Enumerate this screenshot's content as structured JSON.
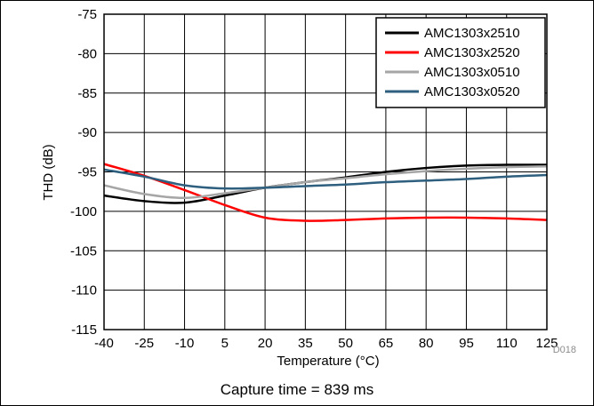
{
  "chart_data": {
    "type": "line",
    "xlabel": "Temperature (°C)",
    "ylabel": "THD (dB)",
    "xlim": [
      -40,
      125
    ],
    "ylim": [
      -115,
      -75
    ],
    "xticks": [
      -40,
      -25,
      -10,
      5,
      20,
      35,
      50,
      65,
      80,
      95,
      110,
      125
    ],
    "yticks": [
      -75,
      -80,
      -85,
      -90,
      -95,
      -100,
      -105,
      -110,
      -115
    ],
    "grid": true,
    "legend_position": "top-right",
    "figure_id": "D018",
    "series": [
      {
        "name": "AMC1303x2510",
        "color": "#000000",
        "x": [
          -40,
          -25,
          -10,
          5,
          20,
          35,
          50,
          65,
          80,
          95,
          110,
          125
        ],
        "y": [
          -98,
          -98.7,
          -98.9,
          -98.0,
          -97.0,
          -96.3,
          -95.7,
          -95.0,
          -94.5,
          -94.2,
          -94.1,
          -94.1
        ]
      },
      {
        "name": "AMC1303x2520",
        "color": "#ff0000",
        "x": [
          -40,
          -25,
          -10,
          5,
          20,
          35,
          50,
          65,
          80,
          95,
          110,
          125
        ],
        "y": [
          -94,
          -95.5,
          -97.3,
          -99.2,
          -100.8,
          -101.2,
          -101.1,
          -100.9,
          -100.8,
          -100.8,
          -100.9,
          -101.1
        ]
      },
      {
        "name": "AMC1303x0510",
        "color": "#a6a6a6",
        "x": [
          -40,
          -25,
          -10,
          5,
          20,
          35,
          50,
          65,
          80,
          95,
          110,
          125
        ],
        "y": [
          -96.7,
          -97.8,
          -98.3,
          -97.7,
          -97.0,
          -96.3,
          -95.8,
          -95.3,
          -94.9,
          -94.6,
          -94.4,
          -94.3
        ]
      },
      {
        "name": "AMC1303x0520",
        "color": "#2e5f7f",
        "x": [
          -40,
          -25,
          -10,
          5,
          20,
          35,
          50,
          65,
          80,
          95,
          110,
          125
        ],
        "y": [
          -94.7,
          -95.6,
          -96.7,
          -97.1,
          -97.0,
          -96.8,
          -96.6,
          -96.3,
          -96.1,
          -95.9,
          -95.6,
          -95.4
        ]
      }
    ]
  },
  "caption": "Capture time = 839 ms"
}
